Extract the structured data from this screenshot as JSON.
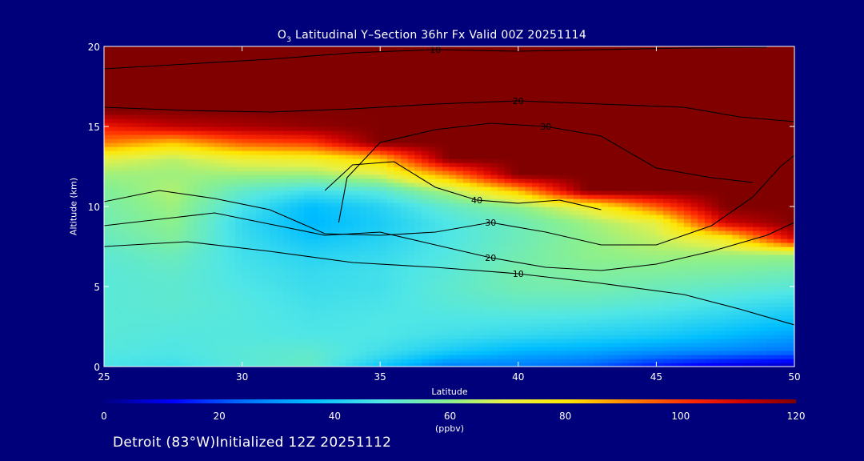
{
  "page": {
    "title_prefix": "O",
    "title_subscript": "3",
    "title_rest": " Latitudinal Y–Section 36hr  Fx Valid 00Z 20251114",
    "footer": "Detroit (83°W)Initialized 12Z 20251112"
  },
  "colors": {
    "background": "#00007a",
    "high_ozone": "#800000",
    "contour": "#000000",
    "text": "#ffffff"
  },
  "chart_data": {
    "type": "heatmap",
    "title": "O3 Latitudinal Y-Section 36hr Fx Valid 00Z 20251114",
    "xlabel": "Latitude",
    "ylabel": "Altitude (km)",
    "xlim": [
      25,
      50
    ],
    "ylim": [
      0,
      20
    ],
    "xticks": [
      25,
      30,
      35,
      40,
      45,
      50
    ],
    "yticks": [
      0,
      5,
      10,
      15,
      20
    ],
    "colorbar": {
      "label": "(ppbv)",
      "min": 0,
      "max": 120,
      "ticks": [
        0,
        20,
        40,
        60,
        80,
        100,
        120
      ]
    },
    "x": [
      25,
      27.5,
      30,
      32.5,
      35,
      37.5,
      40,
      42.5,
      45,
      47.5,
      50
    ],
    "y": [
      0,
      0.5,
      1,
      2,
      3,
      4,
      5,
      6,
      7,
      8,
      9,
      10,
      11,
      12,
      13,
      14,
      15,
      16,
      17,
      18,
      20
    ],
    "z": [
      [
        47,
        45,
        50,
        52,
        38,
        26,
        26,
        22,
        14,
        8,
        5
      ],
      [
        48,
        47,
        50,
        52,
        43,
        33,
        30,
        28,
        22,
        18,
        15
      ],
      [
        49,
        48,
        50,
        51,
        46,
        40,
        35,
        33,
        30,
        28,
        25
      ],
      [
        50,
        49,
        49,
        48,
        48,
        46,
        44,
        42,
        40,
        36,
        32
      ],
      [
        50,
        50,
        49,
        47,
        48,
        48,
        48,
        47,
        45,
        42,
        38
      ],
      [
        50,
        51,
        49,
        46,
        47,
        50,
        52,
        52,
        50,
        47,
        44
      ],
      [
        50,
        51,
        48,
        45,
        46,
        51,
        55,
        56,
        54,
        52,
        50
      ],
      [
        50,
        52,
        47,
        44,
        46,
        50,
        56,
        58,
        58,
        57,
        55
      ],
      [
        51,
        54,
        46,
        42,
        44,
        49,
        55,
        60,
        62,
        62,
        62
      ],
      [
        53,
        58,
        45,
        38,
        42,
        48,
        54,
        60,
        66,
        75,
        110
      ],
      [
        55,
        60,
        44,
        35,
        40,
        48,
        54,
        62,
        70,
        110,
        120
      ],
      [
        56,
        62,
        47,
        36,
        42,
        52,
        60,
        72,
        95,
        120,
        120
      ],
      [
        58,
        64,
        52,
        46,
        50,
        64,
        85,
        120,
        120,
        120,
        120
      ],
      [
        62,
        62,
        62,
        62,
        68,
        90,
        120,
        120,
        120,
        120,
        120
      ],
      [
        70,
        65,
        72,
        74,
        84,
        120,
        120,
        120,
        120,
        120,
        120
      ],
      [
        92,
        84,
        96,
        100,
        120,
        120,
        120,
        120,
        120,
        120,
        120
      ],
      [
        105,
        112,
        115,
        118,
        120,
        120,
        120,
        120,
        120,
        120,
        120
      ],
      [
        120,
        120,
        120,
        120,
        120,
        120,
        120,
        120,
        120,
        120,
        120
      ],
      [
        120,
        120,
        120,
        120,
        120,
        120,
        120,
        120,
        120,
        120,
        120
      ],
      [
        120,
        120,
        120,
        120,
        120,
        120,
        120,
        120,
        120,
        120,
        120
      ],
      [
        120,
        120,
        120,
        120,
        120,
        120,
        120,
        120,
        120,
        120,
        120
      ]
    ],
    "contours": [
      {
        "label": "10",
        "points": [
          [
            25,
            7.5
          ],
          [
            28,
            7.8
          ],
          [
            31,
            7.2
          ],
          [
            34,
            6.5
          ],
          [
            37,
            6.2
          ],
          [
            40,
            5.8
          ],
          [
            43,
            5.2
          ],
          [
            46,
            4.5
          ],
          [
            48,
            3.6
          ],
          [
            50,
            2.6
          ]
        ]
      },
      {
        "label": "20",
        "points": [
          [
            25,
            8.8
          ],
          [
            27,
            9.2
          ],
          [
            29,
            9.6
          ],
          [
            31,
            8.9
          ],
          [
            33,
            8.2
          ],
          [
            35,
            8.4
          ],
          [
            37,
            7.6
          ],
          [
            39,
            6.8
          ],
          [
            41,
            6.2
          ],
          [
            43,
            6.0
          ],
          [
            45,
            6.4
          ],
          [
            47,
            7.2
          ],
          [
            49,
            8.2
          ],
          [
            50,
            9.0
          ]
        ]
      },
      {
        "label": "30",
        "points": [
          [
            25,
            10.3
          ],
          [
            27,
            11.0
          ],
          [
            29,
            10.5
          ],
          [
            31,
            9.8
          ],
          [
            33,
            8.3
          ],
          [
            35,
            8.2
          ],
          [
            37,
            8.4
          ],
          [
            39,
            9.0
          ],
          [
            41,
            8.4
          ],
          [
            43,
            7.6
          ],
          [
            45,
            7.6
          ],
          [
            47,
            8.8
          ],
          [
            48.5,
            10.6
          ],
          [
            49.5,
            12.5
          ],
          [
            50,
            13.2
          ]
        ]
      },
      {
        "label": "40",
        "points": [
          [
            33,
            11.0
          ],
          [
            34,
            12.6
          ],
          [
            35.5,
            12.8
          ],
          [
            37,
            11.2
          ],
          [
            38.5,
            10.4
          ],
          [
            40,
            10.2
          ],
          [
            41.5,
            10.4
          ],
          [
            43,
            9.8
          ]
        ]
      },
      {
        "label": "30",
        "points": [
          [
            33.5,
            9.0
          ],
          [
            33.8,
            11.8
          ],
          [
            35,
            14.0
          ],
          [
            37,
            14.8
          ],
          [
            39,
            15.2
          ],
          [
            41,
            15.0
          ],
          [
            43,
            14.4
          ],
          [
            45,
            12.4
          ],
          [
            47,
            11.8
          ],
          [
            48.5,
            11.5
          ]
        ]
      },
      {
        "label": "20",
        "points": [
          [
            25,
            16.2
          ],
          [
            28,
            16.0
          ],
          [
            31,
            15.9
          ],
          [
            34,
            16.1
          ],
          [
            37,
            16.4
          ],
          [
            40,
            16.6
          ],
          [
            43,
            16.4
          ],
          [
            46,
            16.2
          ],
          [
            48,
            15.6
          ],
          [
            50,
            15.3
          ]
        ]
      },
      {
        "label": "10",
        "points": [
          [
            25,
            18.6
          ],
          [
            28,
            18.9
          ],
          [
            31,
            19.2
          ],
          [
            34,
            19.6
          ],
          [
            37,
            19.8
          ],
          [
            40,
            19.7
          ],
          [
            43,
            19.8
          ],
          [
            46,
            19.9
          ],
          [
            49,
            19.95
          ]
        ]
      }
    ]
  }
}
